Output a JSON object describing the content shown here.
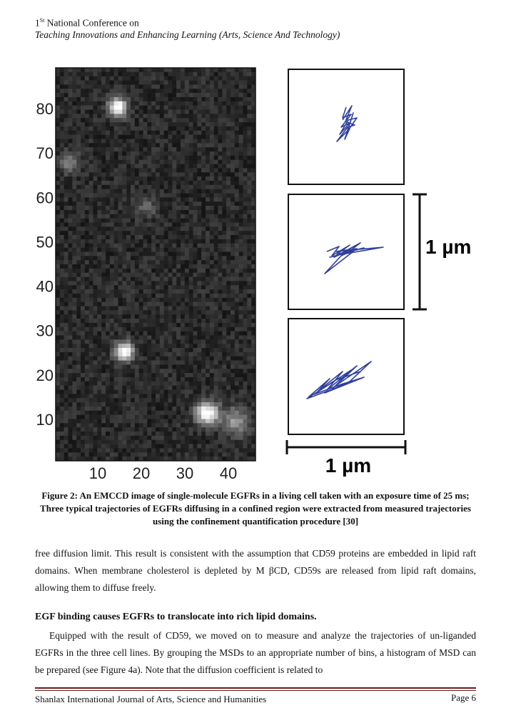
{
  "header": {
    "number": "1",
    "superscript": "St",
    "line1": "National Conference on",
    "line2": "Teaching Innovations and Enhancing Learning (Arts, Science And Technology)"
  },
  "figure": {
    "image_y_ticks": [
      80,
      70,
      60,
      50,
      40,
      30,
      20,
      10
    ],
    "image_x_ticks": [
      10,
      20,
      30,
      40
    ],
    "scale_bar_vertical": "1 µm",
    "scale_bar_horizontal": "1 µm",
    "caption": "Figure 2: An EMCCD image of single-molecule EGFRs in a living cell taken with an exposure time of 25 ms; Three typical trajectories of EGFRs diffusing in a confined region were extracted from measured trajectories using the confinement quantification procedure [30]"
  },
  "body": {
    "paragraph1": "free diffusion limit. This result is consistent with the assumption that CD59 proteins are embedded in lipid raft domains. When membrane cholesterol is depleted by M βCD, CD59s are released from lipid raft domains, allowing them to diffuse freely.",
    "heading": "EGF binding causes EGFRs to translocate into rich lipid domains.",
    "paragraph2": "Equipped with the result of CD59, we moved on to measure and analyze the trajectories of un-liganded EGFRs in the three cell lines. By grouping the MSDs to an appropriate number of bins, a histogram of MSD can be prepared (see Figure 4a). Note that the diffusion coefficient is related to"
  },
  "footer": {
    "journal": "Shanlax International Journal of Arts, Science and Humanities",
    "page": "Page 6"
  }
}
